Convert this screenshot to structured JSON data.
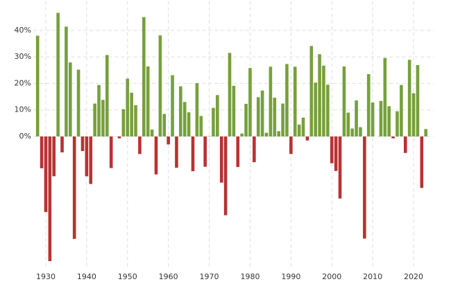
{
  "chart_data": {
    "type": "bar",
    "x": [
      1928,
      1929,
      1930,
      1931,
      1932,
      1933,
      1934,
      1935,
      1936,
      1937,
      1938,
      1939,
      1940,
      1941,
      1942,
      1943,
      1944,
      1945,
      1946,
      1947,
      1948,
      1949,
      1950,
      1951,
      1952,
      1953,
      1954,
      1955,
      1956,
      1957,
      1958,
      1959,
      1960,
      1961,
      1962,
      1963,
      1964,
      1965,
      1966,
      1967,
      1968,
      1969,
      1970,
      1971,
      1972,
      1973,
      1974,
      1975,
      1976,
      1977,
      1978,
      1979,
      1980,
      1981,
      1982,
      1983,
      1984,
      1985,
      1986,
      1987,
      1988,
      1989,
      1990,
      1991,
      1992,
      1993,
      1994,
      1995,
      1996,
      1997,
      1998,
      1999,
      2000,
      2001,
      2002,
      2003,
      2004,
      2005,
      2006,
      2007,
      2008,
      2009,
      2010,
      2011,
      2012,
      2013,
      2014,
      2015,
      2016,
      2017,
      2018,
      2019,
      2020,
      2021,
      2022,
      2023
    ],
    "values": [
      38,
      -12,
      -28.5,
      -47,
      -15,
      46.6,
      -6,
      41.4,
      27.9,
      -38.6,
      25.2,
      -5.5,
      -15,
      -17.9,
      12.4,
      19.4,
      13.8,
      30.7,
      -11.9,
      0,
      -0.7,
      10.3,
      21.8,
      16.5,
      11.8,
      -6.6,
      45,
      26.4,
      2.6,
      -14.3,
      38.1,
      8.5,
      -3,
      23.1,
      -11.8,
      18.9,
      13,
      9.1,
      -13.1,
      20.1,
      7.7,
      -11.4,
      0.1,
      10.8,
      15.6,
      -17.4,
      -29.7,
      31.5,
      19.1,
      -11.5,
      1.1,
      12.3,
      25.8,
      -9.7,
      14.8,
      17.3,
      1.4,
      26.3,
      14.6,
      2,
      12.4,
      27.3,
      -6.6,
      26.3,
      4.5,
      7.1,
      -1.5,
      34.1,
      20.3,
      31,
      26.7,
      19.5,
      -10.1,
      -13,
      -23.4,
      26.4,
      9,
      3,
      13.6,
      3.5,
      -38.5,
      23.5,
      12.8,
      0,
      13.4,
      29.6,
      11.4,
      -0.7,
      9.5,
      19.4,
      -6.2,
      28.9,
      16.3,
      26.9,
      -19.4,
      2.8
    ],
    "positive_color": "#76a03c",
    "negative_color": "#b83232",
    "xlim": [
      1927,
      2025
    ],
    "xticks": [
      1930,
      1940,
      1950,
      1960,
      1970,
      1980,
      1990,
      2000,
      2010,
      2020
    ],
    "ylim": [
      -50,
      51
    ],
    "yticks": [
      {
        "value": 0,
        "label": "0%"
      },
      {
        "value": 10,
        "label": "10%"
      },
      {
        "value": 20,
        "label": "20%"
      },
      {
        "value": 30,
        "label": "30%"
      },
      {
        "value": 40,
        "label": "40%"
      }
    ],
    "grid": true
  }
}
